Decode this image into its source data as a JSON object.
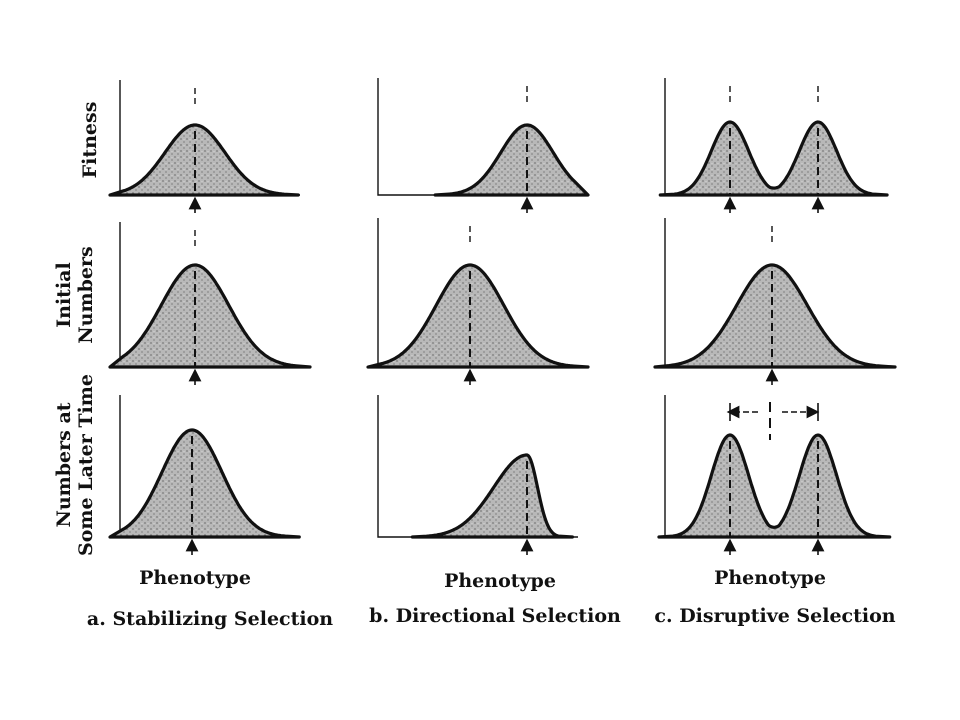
{
  "row_labels": [
    {
      "lines": [
        "Fitness"
      ]
    },
    {
      "lines": [
        "Initial",
        "Numbers"
      ]
    },
    {
      "lines": [
        "Numbers at",
        "Some Later Time"
      ]
    }
  ],
  "columns": [
    {
      "xlabel": "Phenotype",
      "title": "a. Stabilizing Selection"
    },
    {
      "xlabel": "Phenotype",
      "title": "b. Directional  Selection"
    },
    {
      "xlabel": "Phenotype",
      "title": "c. Disruptive Selection"
    }
  ],
  "colors": {
    "ink": "#111111",
    "fill": "#b5b5b5",
    "background": "#ffffff"
  },
  "icons": [
    "arrow-up-icon",
    "double-arrow-icon"
  ]
}
